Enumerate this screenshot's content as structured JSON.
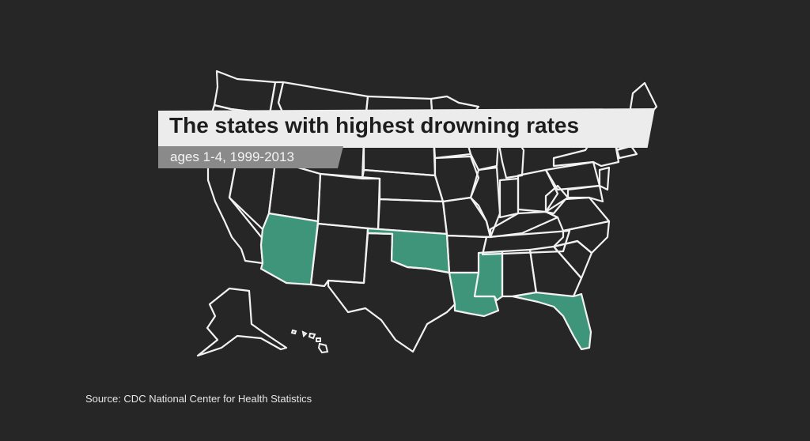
{
  "title": "The states with highest drowning rates",
  "subtitle": "ages 1-4, 1999-2013",
  "source": "Source: CDC National Center for Health Statistics",
  "highlighted_states": [
    "Arizona",
    "Oklahoma",
    "Louisiana",
    "Mississippi",
    "Florida"
  ],
  "colors": {
    "background": "#262626",
    "highlight": "#3f957a",
    "outline": "#f2f2f2",
    "title_banner": "#ececec",
    "subtitle_banner": "#8a8a8a"
  }
}
